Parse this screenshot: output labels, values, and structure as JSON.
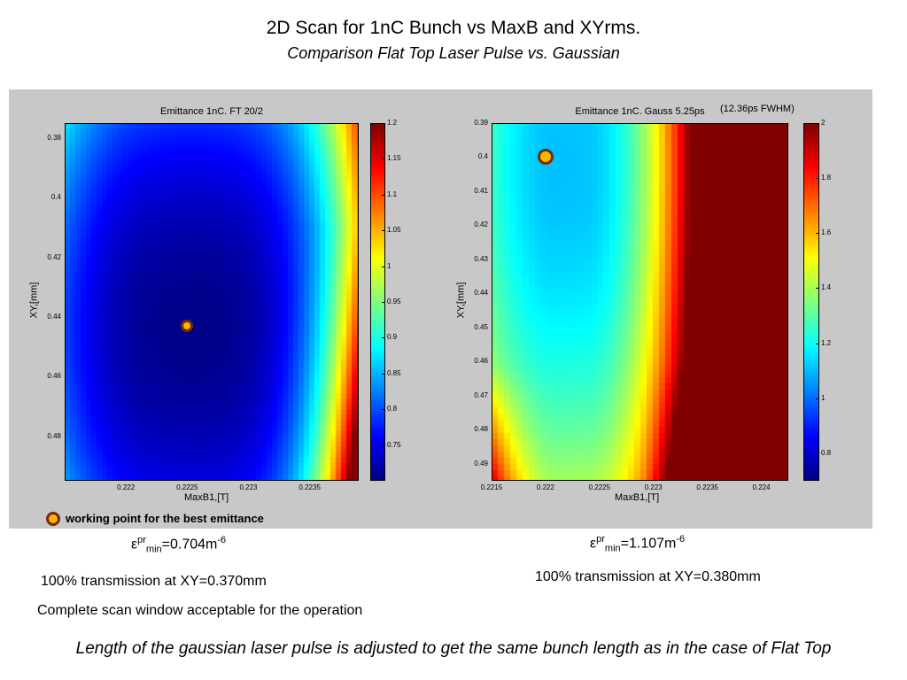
{
  "header": {
    "title": "2D Scan for 1nC Bunch vs MaxB and XYrms.",
    "subtitle": "Comparison Flat Top Laser Pulse vs. Gaussian"
  },
  "chart_data": [
    {
      "type": "heatmap",
      "title": "Emittance 1nC. FT 20/2",
      "xlabel": "MaxB1,[T]",
      "ylabel": "XY,[mm]",
      "xlim": [
        0.2215,
        0.2239
      ],
      "ylim": [
        0.375,
        0.495
      ],
      "y_reversed": true,
      "xticks": [
        0.222,
        0.2225,
        0.223,
        0.2235
      ],
      "yticks": [
        0.38,
        0.4,
        0.42,
        0.44,
        0.46,
        0.48
      ],
      "colorbar": {
        "min": 0.7,
        "max": 1.2,
        "ticks": [
          0.75,
          0.8,
          0.85,
          0.9,
          0.95,
          1,
          1.05,
          1.1,
          1.15,
          1.2
        ]
      },
      "colormap": "jet",
      "minimum_region": {
        "x": 0.2225,
        "y": 0.44,
        "value": 0.704
      },
      "working_point": {
        "x": 0.2225,
        "y": 0.443
      }
    },
    {
      "type": "heatmap",
      "title": "Emittance 1nC. Gauss 5.25ps",
      "annotation": "(12.36ps FWHM)",
      "xlabel": "MaxB1,[T]",
      "ylabel": "XY,[mm]",
      "xlim": [
        0.2215,
        0.22425
      ],
      "ylim": [
        0.39,
        0.495
      ],
      "y_reversed": true,
      "xticks": [
        0.2215,
        0.222,
        0.2225,
        0.223,
        0.2235,
        0.224
      ],
      "yticks": [
        0.39,
        0.4,
        0.41,
        0.42,
        0.43,
        0.44,
        0.45,
        0.46,
        0.47,
        0.48,
        0.49
      ],
      "colorbar": {
        "min": 0.7,
        "max": 2.0,
        "ticks": [
          0.8,
          1,
          1.2,
          1.4,
          1.6,
          1.8,
          2
        ]
      },
      "colormap": "jet",
      "minimum_region": {
        "x": 0.222,
        "y": 0.405,
        "value": 1.107
      },
      "working_point": {
        "x": 0.222,
        "y": 0.4
      }
    }
  ],
  "legend": {
    "label": "working point for the best emittance"
  },
  "left_notes": {
    "emit_symbol": "ε",
    "emit_sup": "pr",
    "emit_sub": "min",
    "emit_value": "=0.704m",
    "emit_exp": "-6",
    "transmission": "100% transmission at XY=0.370mm",
    "scan_note": "Complete scan window acceptable for the operation"
  },
  "right_notes": {
    "emit_symbol": "ε",
    "emit_sup": "pr",
    "emit_sub": "min",
    "emit_value": "=1.107m",
    "emit_exp": "-6",
    "transmission": "100% transmission at XY=0.380mm"
  },
  "footer": {
    "note": "Length of the gaussian laser pulse is adjusted to get the same bunch length as in the case of Flat Top"
  },
  "colors": {
    "marker_fill": "#f5b800",
    "marker_edge": "#7a2a0a",
    "panel_bg": "#c8c8c8"
  }
}
